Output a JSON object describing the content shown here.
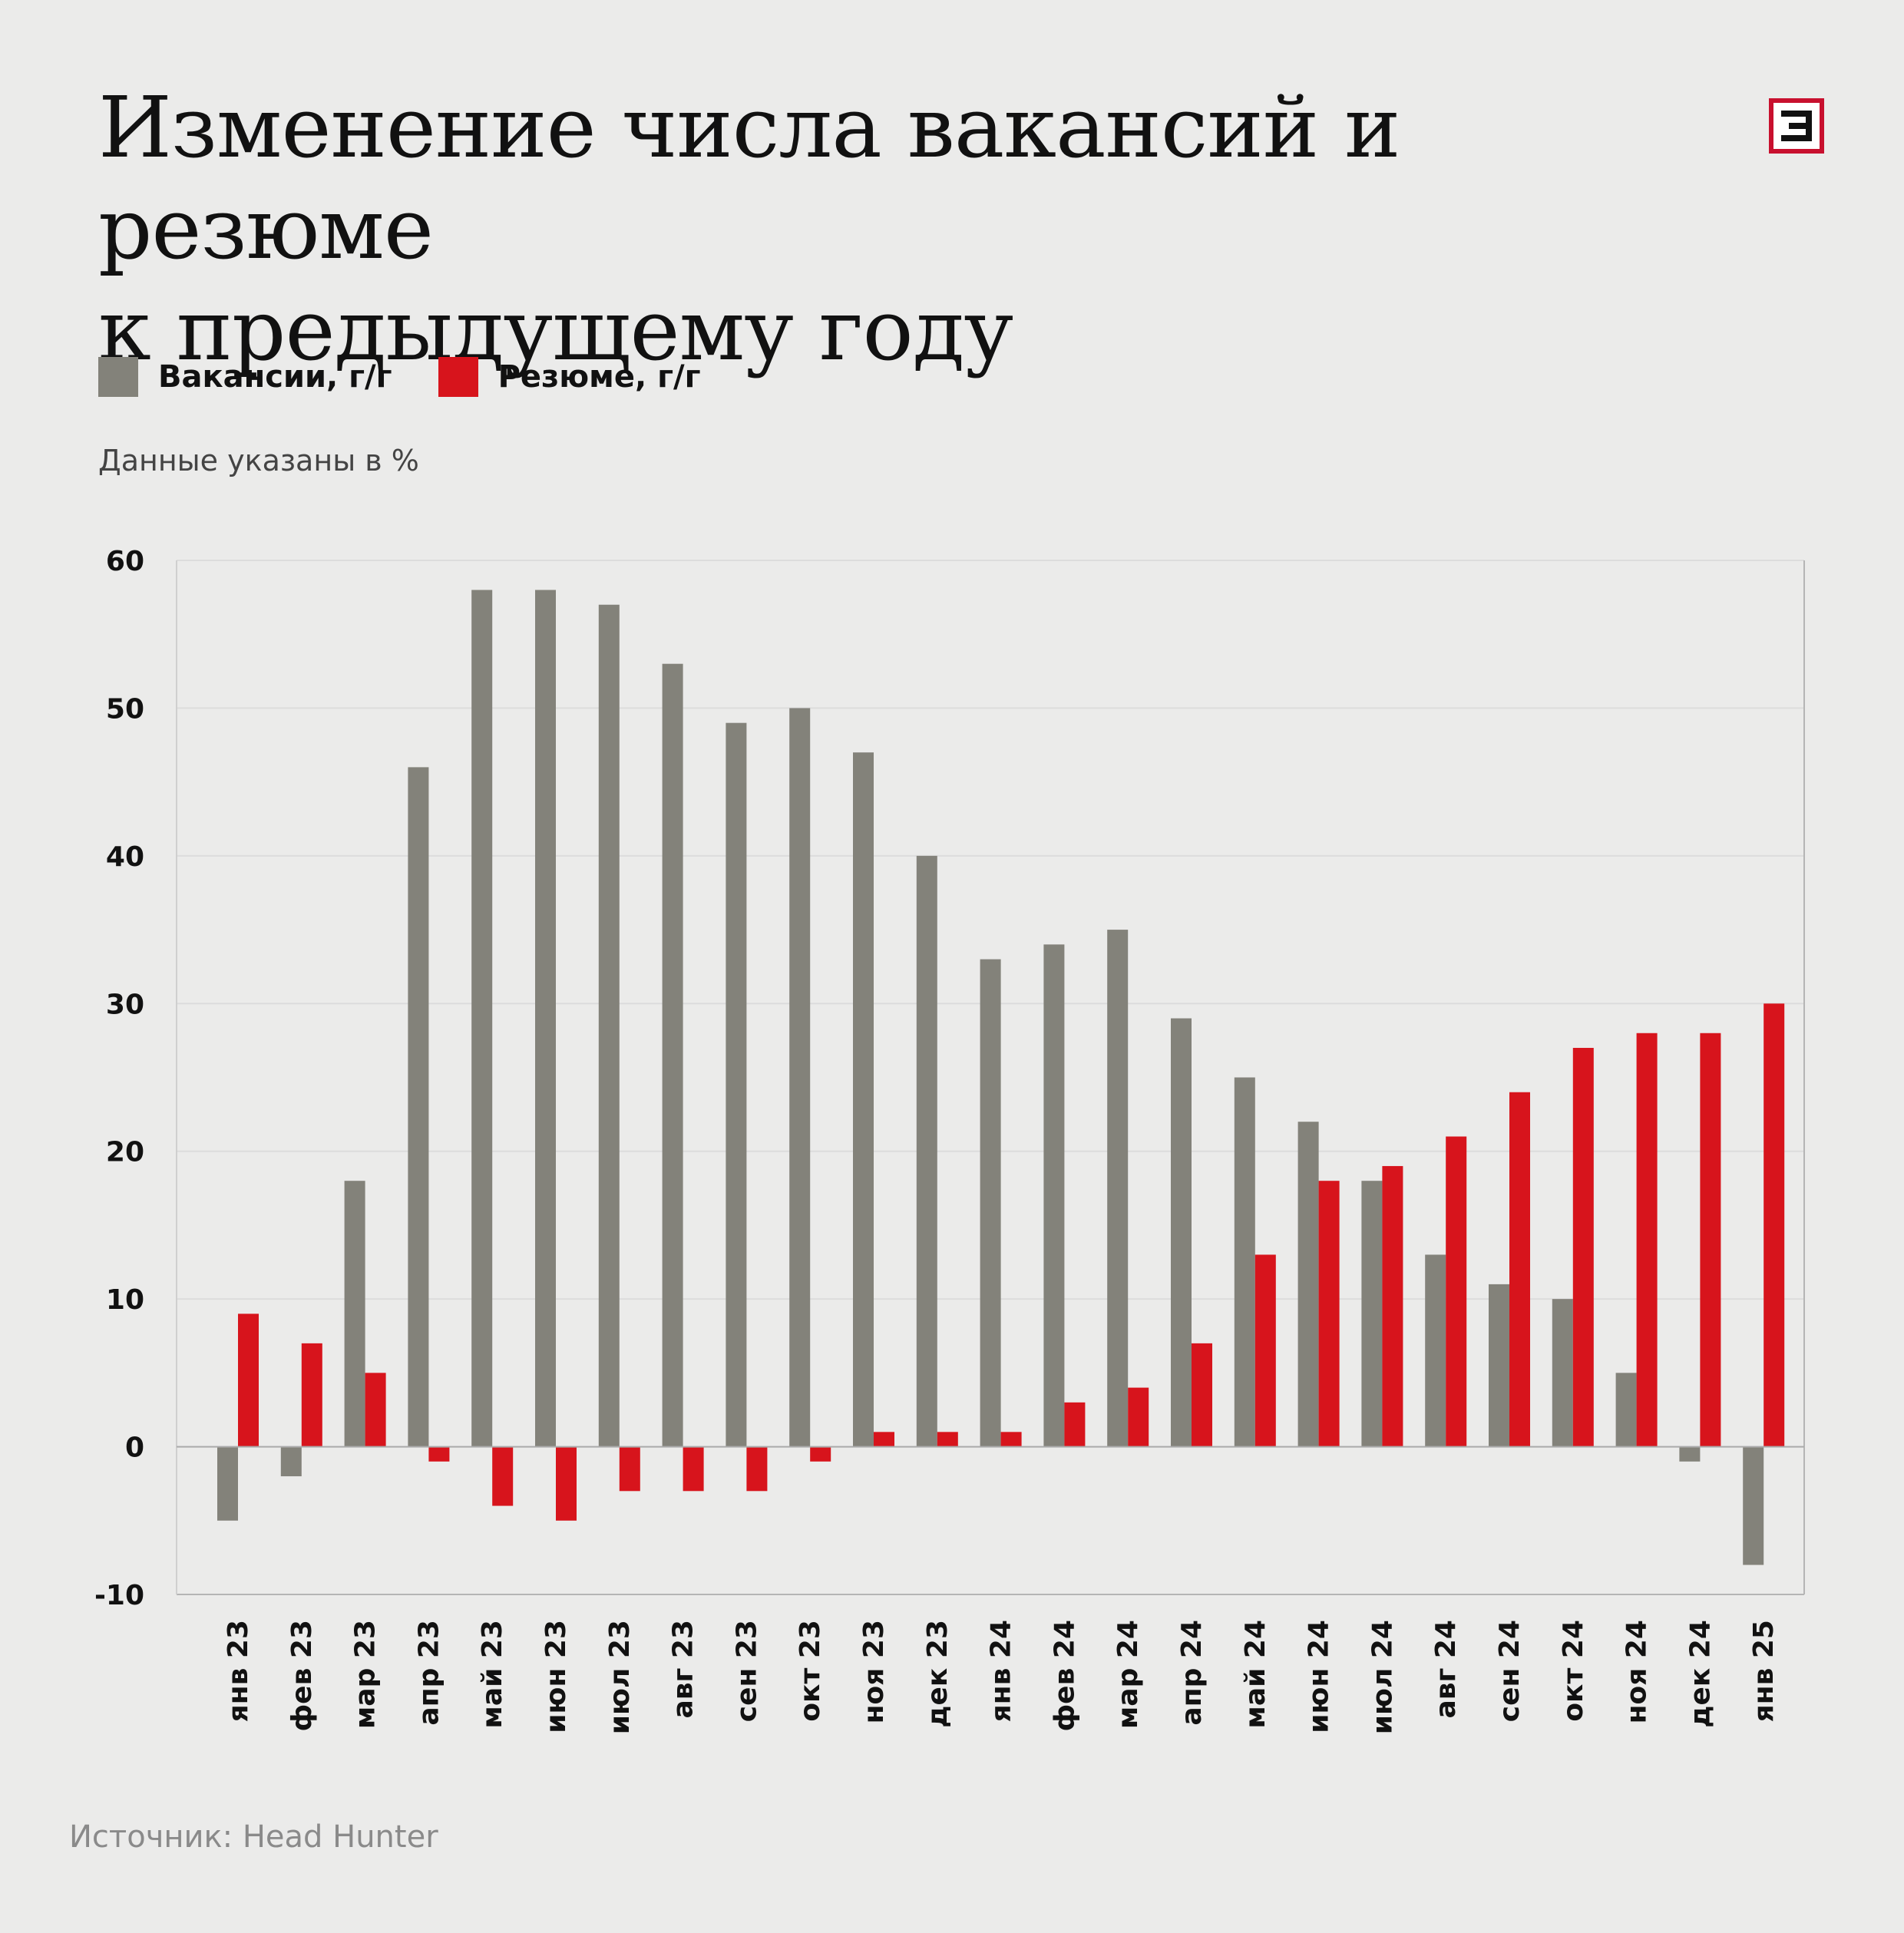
{
  "title_line1": "Изменение числа вакансий и резюме",
  "title_line2": "к предыдущему году",
  "legend": {
    "vacancies": "Вакансии, г/г",
    "resumes": "Резюме, г/г"
  },
  "note": "Данные указаны в %",
  "source": "Источник: Head Hunter",
  "logo_icon": "e-logo-icon",
  "colors": {
    "background": "#ebebea",
    "vacancies": "#83827a",
    "resumes": "#d7141c",
    "accent": "#c8102e"
  },
  "chart_data": {
    "type": "bar",
    "categories": [
      "янв 23",
      "фев 23",
      "мар 23",
      "апр 23",
      "май 23",
      "июн 23",
      "июл 23",
      "авг 23",
      "сен 23",
      "окт 23",
      "ноя 23",
      "дек 23",
      "янв 24",
      "фев 24",
      "мар 24",
      "апр 24",
      "май 24",
      "июн 24",
      "июл 24",
      "авг 24",
      "сен 24",
      "окт 24",
      "ноя 24",
      "дек 24",
      "янв 25"
    ],
    "series": [
      {
        "name": "Вакансии, г/г",
        "color": "#83827a",
        "values": [
          -5,
          -2,
          18,
          46,
          58,
          58,
          57,
          53,
          49,
          50,
          47,
          40,
          33,
          34,
          35,
          29,
          25,
          22,
          18,
          13,
          11,
          10,
          5,
          -1,
          -8
        ]
      },
      {
        "name": "Резюме, г/г",
        "color": "#d7141c",
        "values": [
          9,
          7,
          5,
          -1,
          -4,
          -5,
          -3,
          -3,
          -3,
          -1,
          1,
          1,
          1,
          3,
          4,
          7,
          13,
          18,
          19,
          21,
          24,
          27,
          28,
          28,
          30
        ]
      }
    ],
    "yticks": [
      60,
      50,
      40,
      30,
      20,
      10,
      0,
      -10
    ],
    "ylim": [
      -10,
      60
    ],
    "grid": true,
    "legend_position": "top-left"
  }
}
